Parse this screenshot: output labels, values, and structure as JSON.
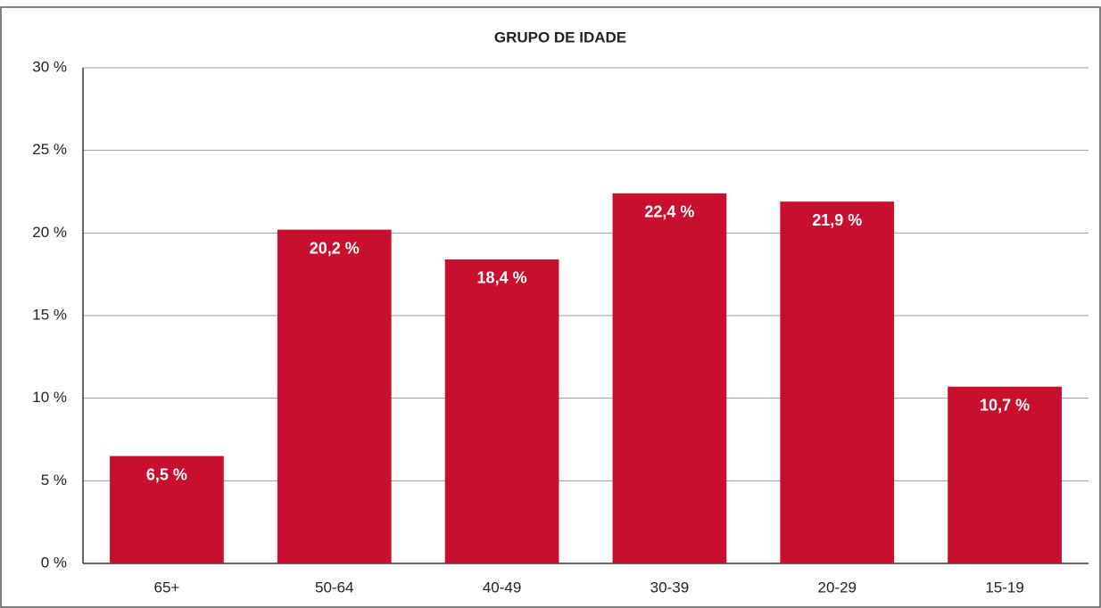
{
  "chart_data": {
    "type": "bar",
    "title": "GRUPO DE IDADE",
    "categories": [
      "65+",
      "50-64",
      "40-49",
      "30-39",
      "20-29",
      "15-19"
    ],
    "values": [
      6.5,
      20.2,
      18.4,
      22.4,
      21.9,
      10.7
    ],
    "value_labels": [
      "6,5 %",
      "20,2 %",
      "18,4 %",
      "22,4 %",
      "21,9 %",
      "10,7 %"
    ],
    "color": "#c8102e",
    "ylim": [
      0,
      30
    ],
    "yticks": [
      {
        "value": 0,
        "label": "0 %"
      },
      {
        "value": 5,
        "label": "5 %"
      },
      {
        "value": 10,
        "label": "10 %"
      },
      {
        "value": 15,
        "label": "15 %"
      },
      {
        "value": 20,
        "label": "20 %"
      },
      {
        "value": 25,
        "label": "25 %"
      },
      {
        "value": 30,
        "label": "30 %"
      }
    ],
    "grid": true
  }
}
